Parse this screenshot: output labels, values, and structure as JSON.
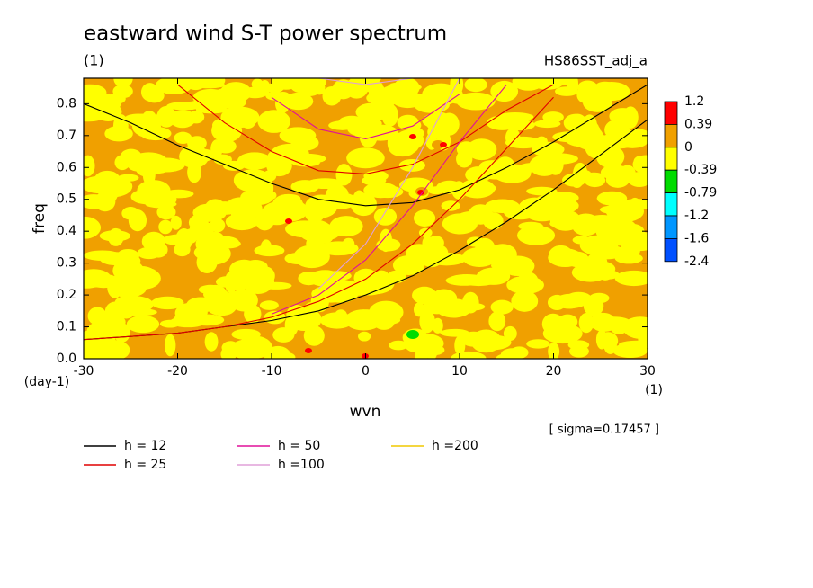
{
  "chart_data": {
    "type": "contour",
    "title": "eastward wind S-T power spectrum",
    "subtitle": "(1)",
    "run_label": "HS86SST_adj_a",
    "xlabel": "wvn",
    "xunit": "(1)",
    "ylabel": "freq",
    "yunit": "(day-1)",
    "note": "[ sigma=0.17457 ]",
    "xlim": [
      -30,
      30
    ],
    "xticks": [
      -30,
      -20,
      -10,
      0,
      10,
      20,
      30
    ],
    "ylim": [
      0,
      0.88
    ],
    "yticks": [
      {
        "value": 0,
        "label": "0.0"
      },
      0.1,
      0.2,
      0.3,
      0.4,
      0.5,
      0.6,
      0.7,
      0.8
    ],
    "x": [
      -30,
      -25,
      -20,
      -15,
      -10,
      -5,
      0,
      5,
      10,
      15,
      20,
      25,
      30
    ],
    "series": [
      {
        "name": "h = 12",
        "color": "#000000",
        "curves": [
          [
            0.06,
            0.07,
            0.08,
            0.1,
            0.12,
            0.15,
            0.2,
            0.26,
            0.34,
            0.43,
            0.53,
            0.64,
            0.75
          ],
          [
            0.8,
            0.74,
            0.67,
            0.61,
            0.55,
            0.5,
            0.48,
            0.49,
            0.53,
            0.6,
            0.68,
            0.77,
            0.86
          ]
        ]
      },
      {
        "name": "h = 25",
        "color": "#e00000",
        "curves": [
          [
            0.06,
            0.07,
            0.08,
            0.1,
            0.13,
            0.18,
            0.25,
            0.36,
            0.5,
            0.66,
            0.82,
            null,
            null
          ],
          [
            null,
            null,
            0.86,
            0.74,
            0.65,
            0.59,
            0.58,
            0.61,
            0.68,
            0.78,
            0.86,
            null,
            null
          ]
        ]
      },
      {
        "name": "h = 50",
        "color": "#e0109a",
        "curves": [
          [
            null,
            null,
            null,
            null,
            0.14,
            0.2,
            0.31,
            0.48,
            0.68,
            0.86,
            null,
            null,
            null
          ],
          [
            null,
            null,
            null,
            null,
            0.82,
            0.72,
            0.69,
            0.73,
            0.83,
            null,
            null,
            null,
            null
          ]
        ]
      },
      {
        "name": "h =100",
        "color": "#e0a0d8",
        "curves": [
          [
            null,
            null,
            null,
            null,
            null,
            0.22,
            0.36,
            0.6,
            0.88,
            null,
            null,
            null,
            null
          ],
          [
            null,
            null,
            null,
            null,
            null,
            0.88,
            0.86,
            0.88,
            null,
            null,
            null,
            null,
            null
          ]
        ]
      },
      {
        "name": "h =200",
        "color": "#f0c800",
        "curves": []
      }
    ],
    "colorbar": {
      "levels": [
        1.2,
        0.39,
        0,
        -0.39,
        -0.79,
        -1.2,
        -1.6,
        -2.4
      ],
      "colors": [
        "#ff0000",
        "#f0a000",
        "#ffff00",
        "#00dc00",
        "#00ffff",
        "#0096ff",
        "#0050ff"
      ]
    }
  }
}
